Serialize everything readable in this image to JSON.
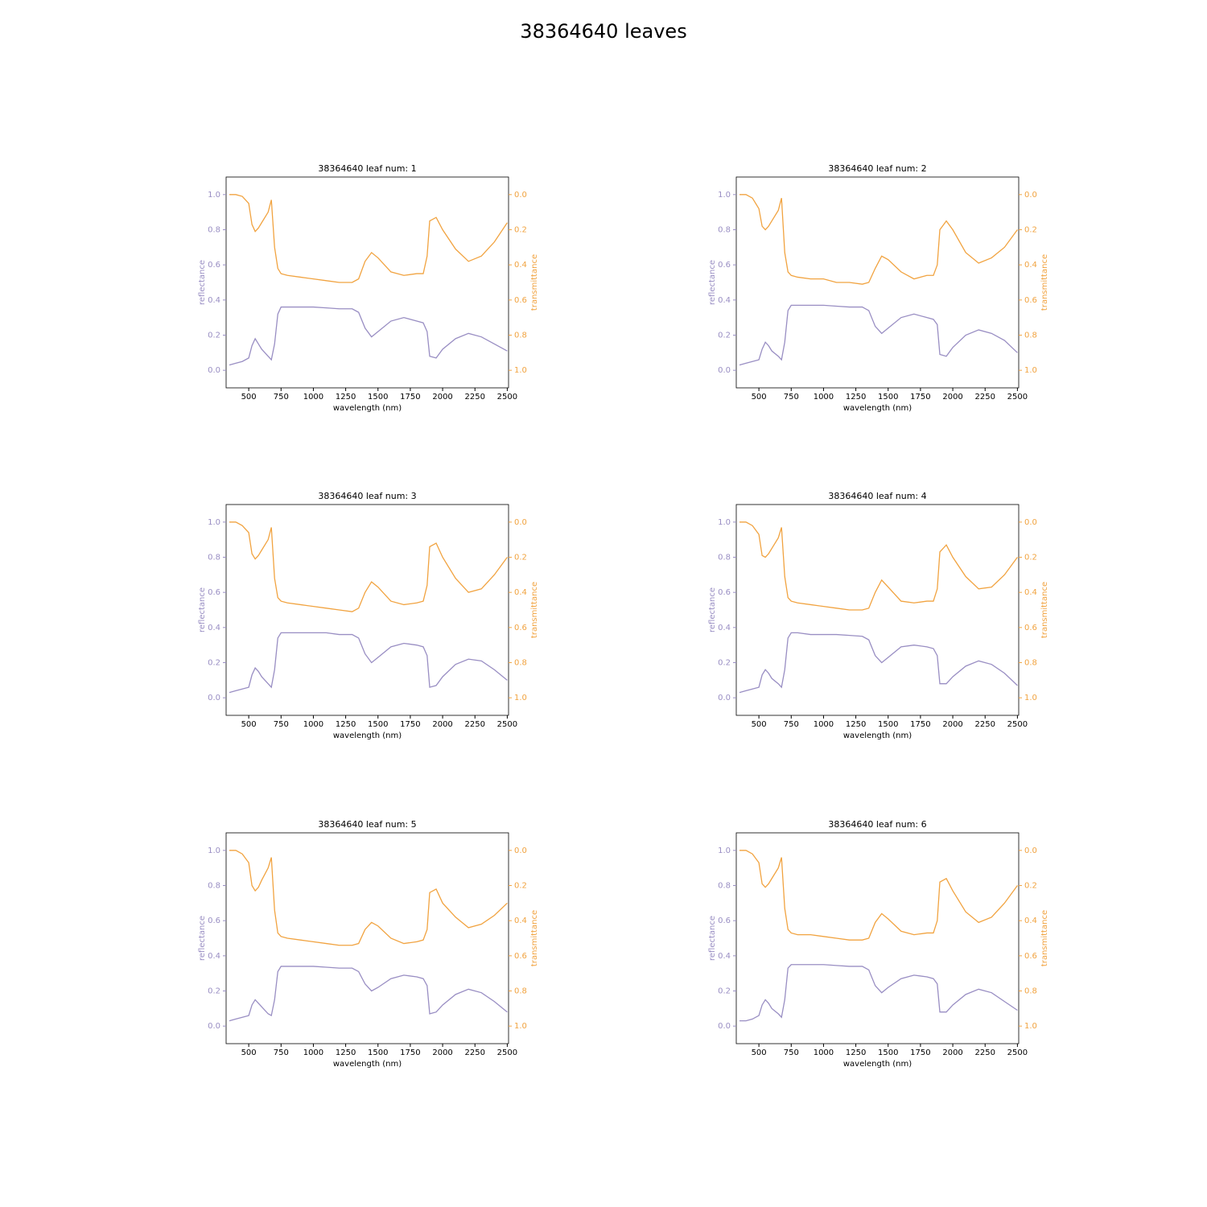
{
  "title": "38364640 leaves",
  "chart_data": [
    {
      "type": "line",
      "title": "38364640 leaf num: 1",
      "xlabel": "wavelength (nm)",
      "ylabel": "reflectance",
      "y2label": "transmittance",
      "x": [
        350,
        400,
        450,
        500,
        525,
        550,
        575,
        600,
        650,
        675,
        700,
        725,
        750,
        800,
        900,
        1000,
        1100,
        1200,
        1300,
        1350,
        1400,
        1450,
        1500,
        1600,
        1700,
        1800,
        1850,
        1880,
        1900,
        1950,
        2000,
        2100,
        2200,
        2300,
        2400,
        2500
      ],
      "xlim": [
        325,
        2510
      ],
      "xticks": [
        500,
        750,
        1000,
        1250,
        1500,
        1750,
        2000,
        2250,
        2500
      ],
      "ylim": [
        -0.1,
        1.1
      ],
      "yticks": [
        {
          "value": 0,
          "label": "0.0"
        },
        0.2,
        0.4,
        0.6,
        0.8,
        {
          "value": 1,
          "label": "1.0"
        }
      ],
      "y2lim": [
        1.1,
        -0.1
      ],
      "y2ticks": [
        {
          "value": 0,
          "label": "0.0"
        },
        0.2,
        0.4,
        0.6,
        0.8,
        {
          "value": 1,
          "label": "1.0"
        }
      ],
      "series": [
        {
          "color": "#998ec3",
          "values": [
            0.03,
            0.04,
            0.05,
            0.07,
            0.14,
            0.18,
            0.15,
            0.12,
            0.08,
            0.06,
            0.15,
            0.32,
            0.36,
            0.36,
            0.36,
            0.36,
            0.355,
            0.35,
            0.35,
            0.33,
            0.24,
            0.19,
            0.22,
            0.28,
            0.3,
            0.28,
            0.27,
            0.22,
            0.08,
            0.07,
            0.12,
            0.18,
            0.21,
            0.19,
            0.15,
            0.11
          ]
        },
        {
          "color": "#f1a340",
          "axis": "y2",
          "values": [
            0.0,
            0.0,
            0.01,
            0.05,
            0.17,
            0.21,
            0.19,
            0.16,
            0.1,
            0.03,
            0.3,
            0.42,
            0.45,
            0.46,
            0.47,
            0.48,
            0.49,
            0.5,
            0.5,
            0.48,
            0.38,
            0.33,
            0.36,
            0.44,
            0.46,
            0.45,
            0.45,
            0.35,
            0.15,
            0.13,
            0.2,
            0.31,
            0.38,
            0.35,
            0.27,
            0.16
          ]
        }
      ]
    },
    {
      "type": "line",
      "title": "38364640 leaf num: 2",
      "xlabel": "wavelength (nm)",
      "ylabel": "reflectance",
      "y2label": "transmittance",
      "x": [
        350,
        400,
        450,
        500,
        525,
        550,
        575,
        600,
        650,
        675,
        700,
        725,
        750,
        800,
        900,
        1000,
        1100,
        1200,
        1300,
        1350,
        1400,
        1450,
        1500,
        1600,
        1700,
        1800,
        1850,
        1880,
        1900,
        1950,
        2000,
        2100,
        2200,
        2300,
        2400,
        2500
      ],
      "xlim": [
        325,
        2510
      ],
      "xticks": [
        500,
        750,
        1000,
        1250,
        1500,
        1750,
        2000,
        2250,
        2500
      ],
      "ylim": [
        -0.1,
        1.1
      ],
      "yticks": [
        {
          "value": 0,
          "label": "0.0"
        },
        0.2,
        0.4,
        0.6,
        0.8,
        {
          "value": 1,
          "label": "1.0"
        }
      ],
      "y2lim": [
        1.1,
        -0.1
      ],
      "y2ticks": [
        {
          "value": 0,
          "label": "0.0"
        },
        0.2,
        0.4,
        0.6,
        0.8,
        {
          "value": 1,
          "label": "1.0"
        }
      ],
      "series": [
        {
          "color": "#998ec3",
          "values": [
            0.03,
            0.04,
            0.05,
            0.06,
            0.12,
            0.16,
            0.14,
            0.11,
            0.08,
            0.06,
            0.16,
            0.34,
            0.37,
            0.37,
            0.37,
            0.37,
            0.365,
            0.36,
            0.36,
            0.34,
            0.25,
            0.21,
            0.24,
            0.3,
            0.32,
            0.3,
            0.29,
            0.26,
            0.09,
            0.08,
            0.13,
            0.2,
            0.23,
            0.21,
            0.17,
            0.1
          ]
        },
        {
          "color": "#f1a340",
          "axis": "y2",
          "values": [
            0.0,
            0.0,
            0.02,
            0.08,
            0.18,
            0.2,
            0.18,
            0.15,
            0.09,
            0.02,
            0.33,
            0.44,
            0.46,
            0.47,
            0.48,
            0.48,
            0.5,
            0.5,
            0.51,
            0.5,
            0.42,
            0.35,
            0.37,
            0.44,
            0.48,
            0.46,
            0.46,
            0.4,
            0.2,
            0.15,
            0.2,
            0.33,
            0.39,
            0.36,
            0.3,
            0.2
          ]
        }
      ]
    },
    {
      "type": "line",
      "title": "38364640 leaf num: 3",
      "xlabel": "wavelength (nm)",
      "ylabel": "reflectance",
      "y2label": "transmittance",
      "x": [
        350,
        400,
        450,
        500,
        525,
        550,
        575,
        600,
        650,
        675,
        700,
        725,
        750,
        800,
        900,
        1000,
        1100,
        1200,
        1300,
        1350,
        1400,
        1450,
        1500,
        1600,
        1700,
        1800,
        1850,
        1880,
        1900,
        1950,
        2000,
        2100,
        2200,
        2300,
        2400,
        2500
      ],
      "xlim": [
        325,
        2510
      ],
      "xticks": [
        500,
        750,
        1000,
        1250,
        1500,
        1750,
        2000,
        2250,
        2500
      ],
      "ylim": [
        -0.1,
        1.1
      ],
      "yticks": [
        {
          "value": 0,
          "label": "0.0"
        },
        0.2,
        0.4,
        0.6,
        0.8,
        {
          "value": 1,
          "label": "1.0"
        }
      ],
      "y2lim": [
        1.1,
        -0.1
      ],
      "y2ticks": [
        {
          "value": 0,
          "label": "0.0"
        },
        0.2,
        0.4,
        0.6,
        0.8,
        {
          "value": 1,
          "label": "1.0"
        }
      ],
      "series": [
        {
          "color": "#998ec3",
          "values": [
            0.03,
            0.04,
            0.05,
            0.06,
            0.13,
            0.17,
            0.15,
            0.12,
            0.08,
            0.06,
            0.16,
            0.34,
            0.37,
            0.37,
            0.37,
            0.37,
            0.37,
            0.36,
            0.36,
            0.34,
            0.25,
            0.2,
            0.23,
            0.29,
            0.31,
            0.3,
            0.29,
            0.24,
            0.06,
            0.07,
            0.12,
            0.19,
            0.22,
            0.21,
            0.16,
            0.1
          ]
        },
        {
          "color": "#f1a340",
          "axis": "y2",
          "values": [
            0.0,
            0.0,
            0.02,
            0.06,
            0.18,
            0.21,
            0.19,
            0.16,
            0.1,
            0.03,
            0.32,
            0.43,
            0.45,
            0.46,
            0.47,
            0.48,
            0.49,
            0.5,
            0.51,
            0.49,
            0.4,
            0.34,
            0.37,
            0.45,
            0.47,
            0.46,
            0.45,
            0.36,
            0.14,
            0.12,
            0.2,
            0.32,
            0.4,
            0.38,
            0.3,
            0.2
          ]
        }
      ]
    },
    {
      "type": "line",
      "title": "38364640 leaf num: 4",
      "xlabel": "wavelength (nm)",
      "ylabel": "reflectance",
      "y2label": "transmittance",
      "x": [
        350,
        400,
        450,
        500,
        525,
        550,
        575,
        600,
        650,
        675,
        700,
        725,
        750,
        800,
        900,
        1000,
        1100,
        1200,
        1300,
        1350,
        1400,
        1450,
        1500,
        1600,
        1700,
        1800,
        1850,
        1880,
        1900,
        1950,
        2000,
        2100,
        2200,
        2300,
        2400,
        2500
      ],
      "xlim": [
        325,
        2510
      ],
      "xticks": [
        500,
        750,
        1000,
        1250,
        1500,
        1750,
        2000,
        2250,
        2500
      ],
      "ylim": [
        -0.1,
        1.1
      ],
      "yticks": [
        {
          "value": 0,
          "label": "0.0"
        },
        0.2,
        0.4,
        0.6,
        0.8,
        {
          "value": 1,
          "label": "1.0"
        }
      ],
      "y2lim": [
        1.1,
        -0.1
      ],
      "y2ticks": [
        {
          "value": 0,
          "label": "0.0"
        },
        0.2,
        0.4,
        0.6,
        0.8,
        {
          "value": 1,
          "label": "1.0"
        }
      ],
      "series": [
        {
          "color": "#998ec3",
          "values": [
            0.03,
            0.04,
            0.05,
            0.06,
            0.13,
            0.16,
            0.14,
            0.11,
            0.08,
            0.06,
            0.16,
            0.34,
            0.37,
            0.37,
            0.36,
            0.36,
            0.36,
            0.355,
            0.35,
            0.33,
            0.24,
            0.2,
            0.23,
            0.29,
            0.3,
            0.29,
            0.28,
            0.24,
            0.08,
            0.08,
            0.12,
            0.18,
            0.21,
            0.19,
            0.14,
            0.07
          ]
        },
        {
          "color": "#f1a340",
          "axis": "y2",
          "values": [
            0.0,
            0.0,
            0.02,
            0.07,
            0.19,
            0.2,
            0.18,
            0.15,
            0.09,
            0.03,
            0.31,
            0.43,
            0.45,
            0.46,
            0.47,
            0.48,
            0.49,
            0.5,
            0.5,
            0.49,
            0.4,
            0.33,
            0.37,
            0.45,
            0.46,
            0.45,
            0.45,
            0.38,
            0.17,
            0.13,
            0.2,
            0.31,
            0.38,
            0.37,
            0.3,
            0.2
          ]
        }
      ]
    },
    {
      "type": "line",
      "title": "38364640 leaf num: 5",
      "xlabel": "wavelength (nm)",
      "ylabel": "reflectance",
      "y2label": "transmittance",
      "x": [
        350,
        400,
        450,
        500,
        525,
        550,
        575,
        600,
        650,
        675,
        700,
        725,
        750,
        800,
        900,
        1000,
        1100,
        1200,
        1300,
        1350,
        1400,
        1450,
        1500,
        1600,
        1700,
        1800,
        1850,
        1880,
        1900,
        1950,
        2000,
        2100,
        2200,
        2300,
        2400,
        2500
      ],
      "xlim": [
        325,
        2510
      ],
      "xticks": [
        500,
        750,
        1000,
        1250,
        1500,
        1750,
        2000,
        2250,
        2500
      ],
      "ylim": [
        -0.1,
        1.1
      ],
      "yticks": [
        {
          "value": 0,
          "label": "0.0"
        },
        0.2,
        0.4,
        0.6,
        0.8,
        {
          "value": 1,
          "label": "1.0"
        }
      ],
      "y2lim": [
        1.1,
        -0.1
      ],
      "y2ticks": [
        {
          "value": 0,
          "label": "0.0"
        },
        0.2,
        0.4,
        0.6,
        0.8,
        {
          "value": 1,
          "label": "1.0"
        }
      ],
      "series": [
        {
          "color": "#998ec3",
          "values": [
            0.03,
            0.04,
            0.05,
            0.06,
            0.12,
            0.15,
            0.13,
            0.11,
            0.07,
            0.06,
            0.15,
            0.31,
            0.34,
            0.34,
            0.34,
            0.34,
            0.335,
            0.33,
            0.33,
            0.31,
            0.24,
            0.2,
            0.22,
            0.27,
            0.29,
            0.28,
            0.27,
            0.23,
            0.07,
            0.08,
            0.12,
            0.18,
            0.21,
            0.19,
            0.14,
            0.08
          ]
        },
        {
          "color": "#f1a340",
          "axis": "y2",
          "values": [
            0.0,
            0.0,
            0.02,
            0.07,
            0.2,
            0.23,
            0.21,
            0.17,
            0.1,
            0.04,
            0.34,
            0.47,
            0.49,
            0.5,
            0.51,
            0.52,
            0.53,
            0.54,
            0.54,
            0.53,
            0.45,
            0.41,
            0.43,
            0.5,
            0.53,
            0.52,
            0.51,
            0.45,
            0.24,
            0.22,
            0.3,
            0.38,
            0.44,
            0.42,
            0.37,
            0.3
          ]
        }
      ]
    },
    {
      "type": "line",
      "title": "38364640 leaf num: 6",
      "xlabel": "wavelength (nm)",
      "ylabel": "reflectance",
      "y2label": "transmittance",
      "x": [
        350,
        400,
        450,
        500,
        525,
        550,
        575,
        600,
        650,
        675,
        700,
        725,
        750,
        800,
        900,
        1000,
        1100,
        1200,
        1300,
        1350,
        1400,
        1450,
        1500,
        1600,
        1700,
        1800,
        1850,
        1880,
        1900,
        1950,
        2000,
        2100,
        2200,
        2300,
        2400,
        2500
      ],
      "xlim": [
        325,
        2510
      ],
      "xticks": [
        500,
        750,
        1000,
        1250,
        1500,
        1750,
        2000,
        2250,
        2500
      ],
      "ylim": [
        -0.1,
        1.1
      ],
      "yticks": [
        {
          "value": 0,
          "label": "0.0"
        },
        0.2,
        0.4,
        0.6,
        0.8,
        {
          "value": 1,
          "label": "1.0"
        }
      ],
      "y2lim": [
        1.1,
        -0.1
      ],
      "y2ticks": [
        {
          "value": 0,
          "label": "0.0"
        },
        0.2,
        0.4,
        0.6,
        0.8,
        {
          "value": 1,
          "label": "1.0"
        }
      ],
      "series": [
        {
          "color": "#998ec3",
          "values": [
            0.03,
            0.03,
            0.04,
            0.06,
            0.12,
            0.15,
            0.13,
            0.1,
            0.07,
            0.05,
            0.15,
            0.33,
            0.35,
            0.35,
            0.35,
            0.35,
            0.345,
            0.34,
            0.34,
            0.32,
            0.23,
            0.19,
            0.22,
            0.27,
            0.29,
            0.28,
            0.27,
            0.24,
            0.08,
            0.08,
            0.12,
            0.18,
            0.21,
            0.19,
            0.14,
            0.09
          ]
        },
        {
          "color": "#f1a340",
          "axis": "y2",
          "values": [
            0.0,
            0.0,
            0.02,
            0.07,
            0.19,
            0.21,
            0.19,
            0.16,
            0.1,
            0.04,
            0.33,
            0.45,
            0.47,
            0.48,
            0.48,
            0.49,
            0.5,
            0.51,
            0.51,
            0.5,
            0.41,
            0.36,
            0.39,
            0.46,
            0.48,
            0.47,
            0.47,
            0.4,
            0.18,
            0.16,
            0.23,
            0.35,
            0.41,
            0.38,
            0.3,
            0.2
          ]
        }
      ]
    }
  ]
}
